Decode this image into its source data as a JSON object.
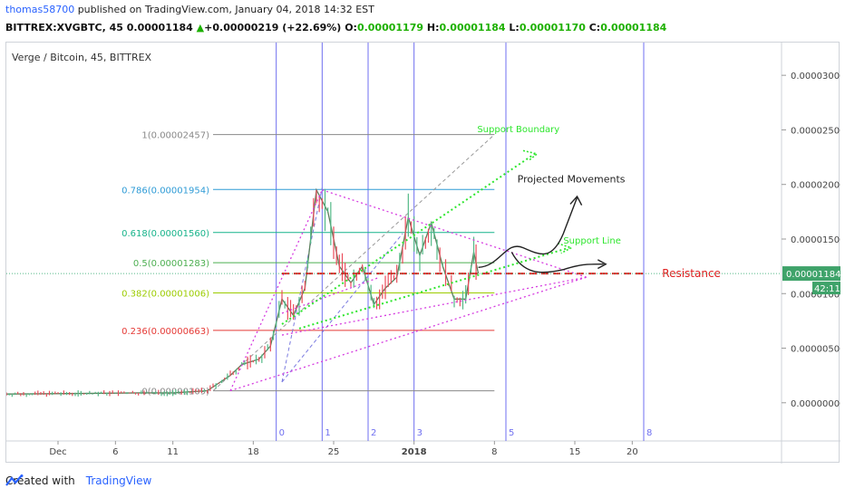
{
  "header": {
    "user": "thomas58700",
    "published_text": "published on TradingView.com, January 04, 2018 14:32 EST",
    "symbol": "BITTREX:XVGBTC, 45",
    "price": "0.00001184",
    "change": "+0.00000219 (+22.69%)",
    "o_label": "O:",
    "o_value": "0.00001179",
    "h_label": "H:",
    "h_value": "0.00001184",
    "l_label": "L:",
    "l_value": "0.00001170",
    "c_label": "C:",
    "c_value": "0.00001184"
  },
  "chart_data": {
    "type": "candlestick",
    "title": "Verge / Bitcoin, 45, BITTREX",
    "y_ticks": [
      "0.00003000",
      "0.00002500",
      "0.00002000",
      "0.00001500",
      "0.00001000",
      "0.00000500",
      "0.00000000"
    ],
    "y_tick_values": [
      3e-05,
      2.5e-05,
      2e-05,
      1.5e-05,
      1e-05,
      5e-06,
      0
    ],
    "ylim": [
      -3.5e-06,
      3.3e-05
    ],
    "x_ticks": [
      "Dec",
      "6",
      "11",
      "18",
      "25",
      "2018",
      "8",
      "15",
      "20"
    ],
    "x_tick_days": [
      1,
      6,
      11,
      18,
      25,
      32,
      39,
      46,
      51
    ],
    "xlim": [
      -3.5,
      64
    ],
    "current_price_label": "0.00001184",
    "current_price_value": 1.184e-05,
    "countdown_label": "42:11",
    "fib_levels": [
      {
        "label": "1(0.00002457)",
        "value": 2.457e-05,
        "color": "#888888"
      },
      {
        "label": "0.786(0.00001954)",
        "value": 1.954e-05,
        "color": "#2e9bd6"
      },
      {
        "label": "0.618(0.00001560)",
        "value": 1.56e-05,
        "color": "#16b38a"
      },
      {
        "label": "0.5(0.00001283)",
        "value": 1.283e-05,
        "color": "#4caf50"
      },
      {
        "label": "0.382(0.00001006)",
        "value": 1.006e-05,
        "color": "#9ccc00"
      },
      {
        "label": "0.236(0.00000663)",
        "value": 6.63e-06,
        "color": "#e53935"
      },
      {
        "label": "0(0.00000109)",
        "value": 1.09e-06,
        "color": "#888888"
      }
    ],
    "fib_time_labels": [
      "0",
      "1",
      "2",
      "3",
      "5",
      "8"
    ],
    "fib_time_days": [
      20,
      24,
      28,
      32,
      40,
      52
    ],
    "annotations": {
      "support_boundary": "Support Boundary",
      "projected_movements": "Projected Movements",
      "support_line": "Support Line",
      "resistance": "Resistance"
    },
    "price_path": [
      [
        -3.5,
        8e-07
      ],
      [
        3,
        8.5e-07
      ],
      [
        8,
        9e-07
      ],
      [
        11,
        9e-07
      ],
      [
        14,
        1.1e-06
      ],
      [
        16,
        2.5e-06
      ],
      [
        17,
        3.5e-06
      ],
      [
        18.5,
        4e-06
      ],
      [
        19.5,
        5.2e-06
      ],
      [
        20.5,
        9.5e-06
      ],
      [
        21.5,
        8e-06
      ],
      [
        22.5,
        1.05e-05
      ],
      [
        23.5,
        1.95e-05
      ],
      [
        24.5,
        1.75e-05
      ],
      [
        25.5,
        1.25e-05
      ],
      [
        26.5,
        1.1e-05
      ],
      [
        27.5,
        1.25e-05
      ],
      [
        28.5,
        9e-06
      ],
      [
        29.5,
        1.05e-05
      ],
      [
        30.5,
        1.15e-05
      ],
      [
        31.5,
        1.7e-05
      ],
      [
        32.5,
        1.35e-05
      ],
      [
        33.5,
        1.65e-05
      ],
      [
        34.5,
        1.25e-05
      ],
      [
        35.5,
        9.5e-06
      ],
      [
        36.5,
        9.5e-06
      ],
      [
        37.2,
        1.38e-05
      ],
      [
        37.6,
        1.184e-05
      ]
    ]
  },
  "footer": {
    "created_with": "Created with",
    "brand": "TradingView"
  }
}
